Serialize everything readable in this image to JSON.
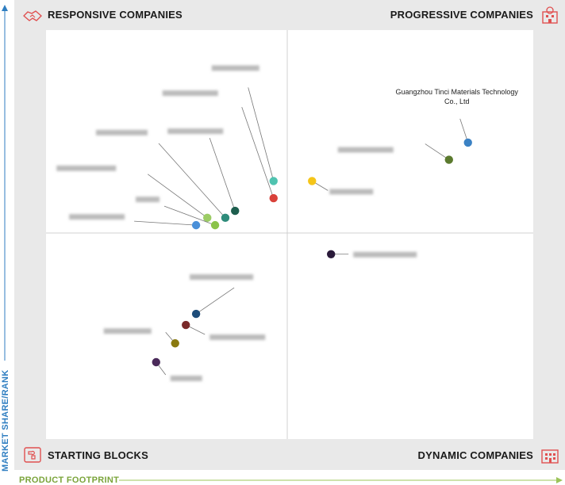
{
  "quadrants": {
    "top_left": "RESPONSIVE COMPANIES",
    "top_right": "PROGRESSIVE COMPANIES",
    "bottom_left": "STARTING BLOCKS",
    "bottom_right": "DYNAMIC COMPANIES"
  },
  "axes": {
    "y_label": "MARKET SHARE/RANK",
    "x_label": "PRODUCT FOOTPRINT"
  },
  "icons": {
    "top_left": "handshake-icon",
    "top_right": "building-icon",
    "bottom_left": "puzzle-icon",
    "bottom_right": "office-icon"
  },
  "chart_data": {
    "type": "scatter",
    "title": "",
    "xlabel": "PRODUCT FOOTPRINT",
    "ylabel": "MARKET SHARE/RANK",
    "xlim": [
      0,
      100
    ],
    "ylim": [
      0,
      100
    ],
    "grid": false,
    "points": [
      {
        "label": "Guangzhou Tinci Materials Technology Co., Ltd",
        "x": 86.6,
        "y": 72.5,
        "color": "#3b82c4",
        "blurred": false
      },
      {
        "label": "",
        "x": 82.7,
        "y": 68.3,
        "color": "#5b7a2e",
        "blurred": true
      },
      {
        "label": "",
        "x": 54.6,
        "y": 63.1,
        "color": "#f5c518",
        "blurred": true
      },
      {
        "label": "",
        "x": 46.7,
        "y": 63.1,
        "color": "#4fc3b0",
        "blurred": true
      },
      {
        "label": "",
        "x": 46.7,
        "y": 58.9,
        "color": "#d9413a",
        "blurred": true
      },
      {
        "label": "",
        "x": 38.8,
        "y": 55.8,
        "color": "#1d5e4e",
        "blurred": true
      },
      {
        "label": "",
        "x": 36.8,
        "y": 54.1,
        "color": "#2e8b7a",
        "blurred": true
      },
      {
        "label": "",
        "x": 33.1,
        "y": 54.1,
        "color": "#9ccc65",
        "blurred": true
      },
      {
        "label": "",
        "x": 34.7,
        "y": 52.3,
        "color": "#8bc34a",
        "blurred": true
      },
      {
        "label": "",
        "x": 30.8,
        "y": 52.3,
        "color": "#4a90d9",
        "blurred": true
      },
      {
        "label": "",
        "x": 58.5,
        "y": 45.2,
        "color": "#2a1a3a",
        "blurred": true
      },
      {
        "label": "",
        "x": 30.8,
        "y": 30.6,
        "color": "#1e4d7a",
        "blurred": true
      },
      {
        "label": "",
        "x": 28.7,
        "y": 27.9,
        "color": "#7a2a2a",
        "blurred": true
      },
      {
        "label": "",
        "x": 26.5,
        "y": 23.4,
        "color": "#8a7a10",
        "blurred": true
      },
      {
        "label": "",
        "x": 22.6,
        "y": 18.8,
        "color": "#4a2a5a",
        "blurred": true
      }
    ]
  }
}
